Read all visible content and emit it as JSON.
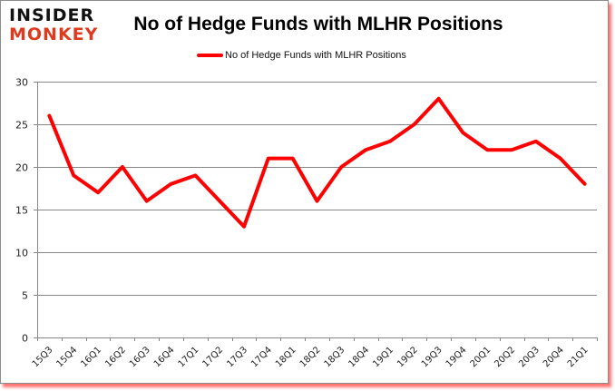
{
  "brand": {
    "line1": "INSIDER",
    "line2": "MONKEY"
  },
  "colors": {
    "series": "#ff0000",
    "grid": "#868686",
    "logo_dark": "#111111",
    "logo_accent": "#e03a1e"
  },
  "chart_data": {
    "type": "line",
    "title": "No of Hedge Funds with MLHR Positions",
    "xlabel": "",
    "ylabel": "",
    "ylim": [
      0,
      30
    ],
    "yticks": [
      0,
      5,
      10,
      15,
      20,
      25,
      30
    ],
    "grid": true,
    "legend_position": "top",
    "categories": [
      "15Q3",
      "15Q4",
      "16Q1",
      "16Q2",
      "16Q3",
      "16Q4",
      "17Q1",
      "17Q2",
      "17Q3",
      "17Q4",
      "18Q1",
      "18Q2",
      "18Q3",
      "18Q4",
      "19Q1",
      "19Q2",
      "19Q3",
      "19Q4",
      "20Q1",
      "20Q2",
      "20Q3",
      "20Q4",
      "21Q1"
    ],
    "series": [
      {
        "name": "No of Hedge Funds with MLHR Positions",
        "color": "#ff0000",
        "values": [
          26,
          19,
          17,
          20,
          16,
          18,
          19,
          16,
          13,
          21,
          21,
          16,
          20,
          22,
          23,
          25,
          28,
          24,
          22,
          22,
          23,
          21,
          18
        ]
      }
    ]
  }
}
